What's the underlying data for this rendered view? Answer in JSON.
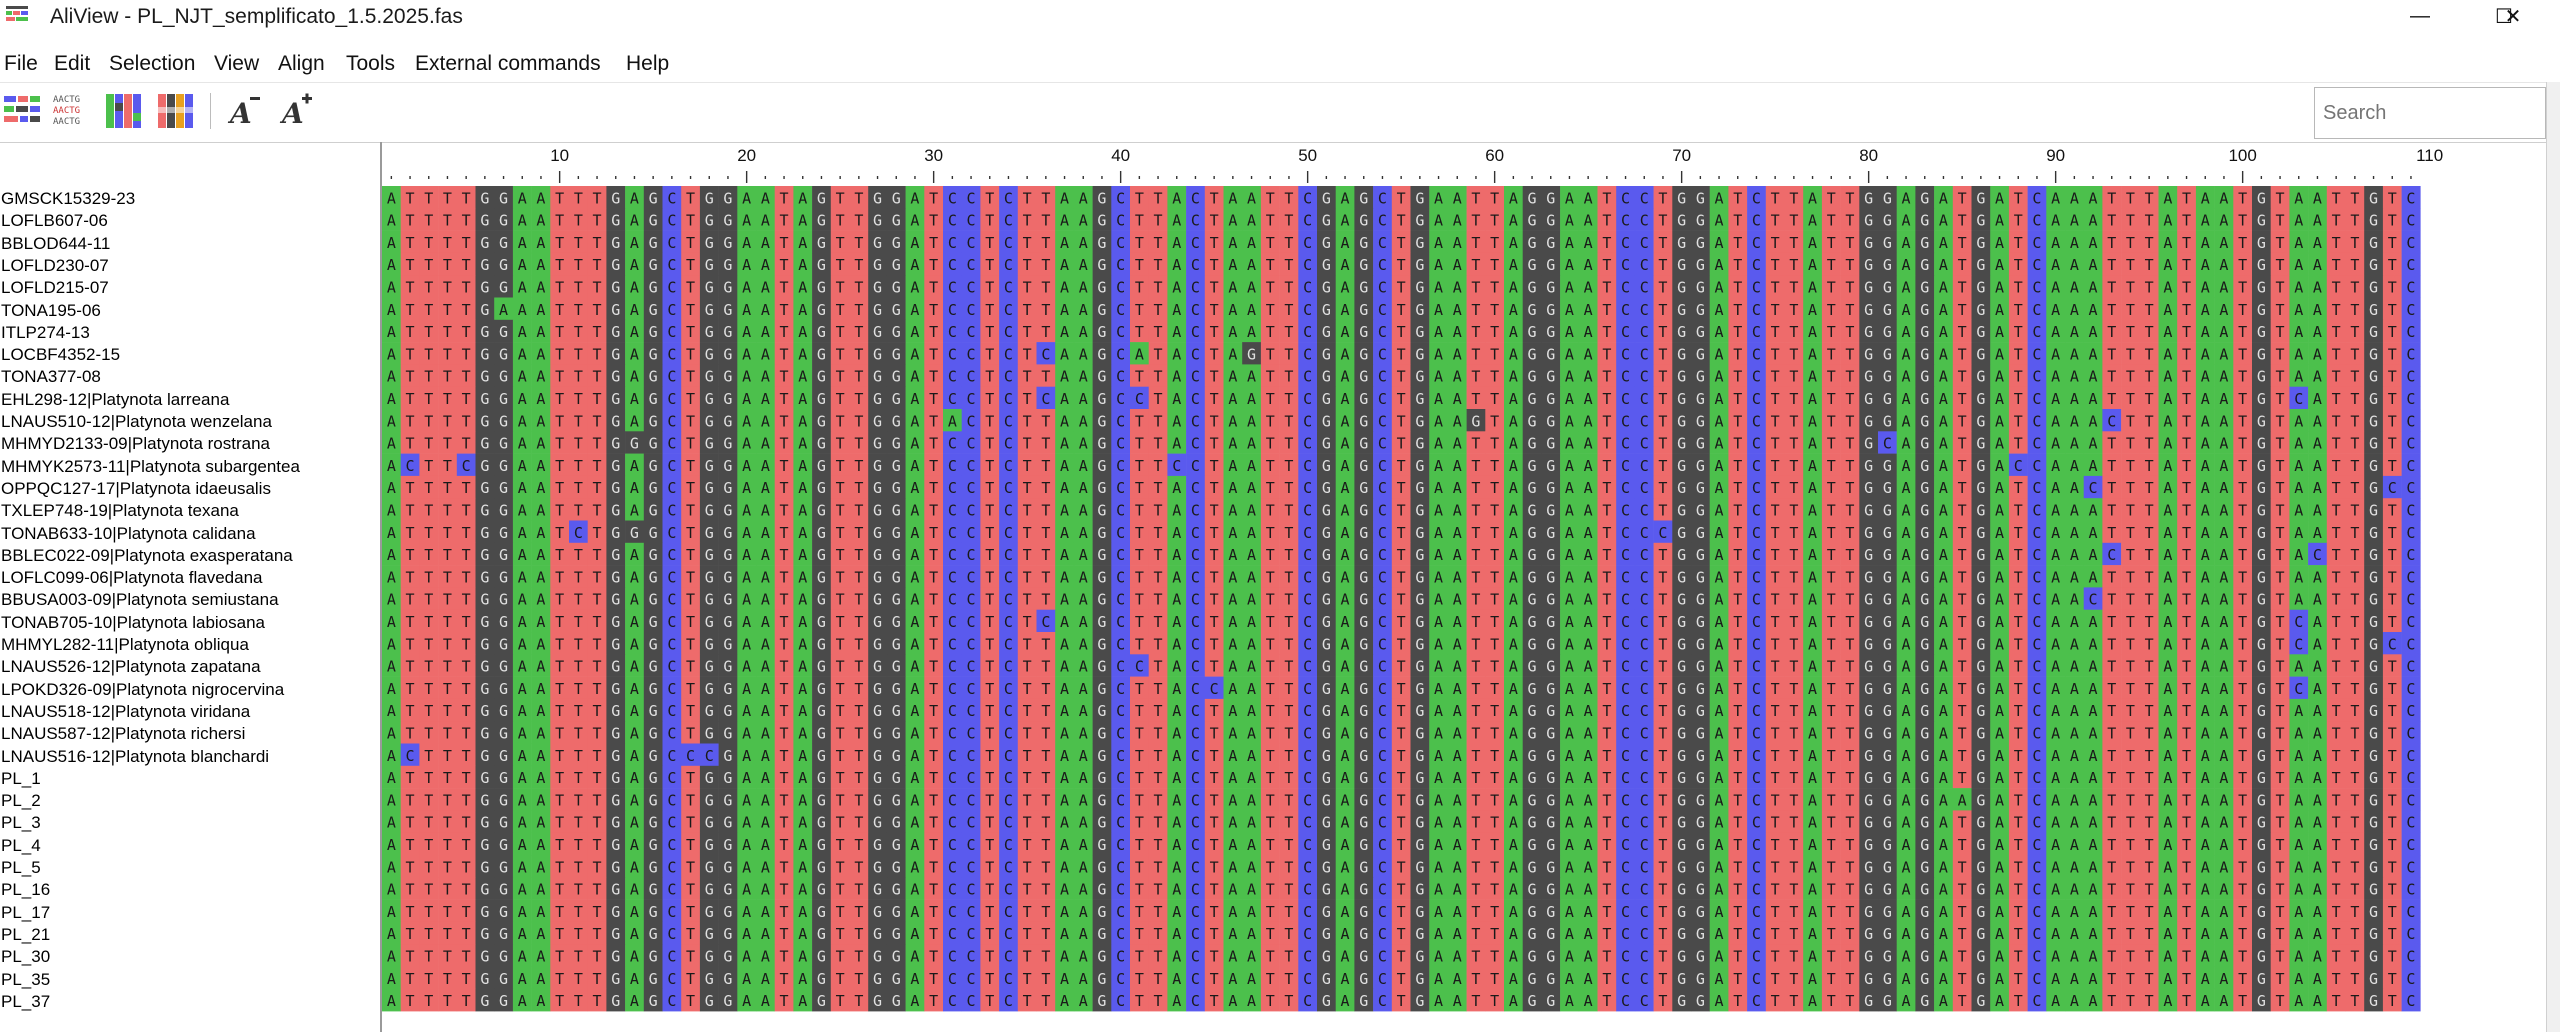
{
  "window": {
    "title": "AliView - PL_NJT_semplificato_1.5.2025.fas",
    "minimize_glyph": "—",
    "maximize_glyph": "☐",
    "close_glyph": "✕"
  },
  "menu": {
    "items": [
      "File",
      "Edit",
      "Selection",
      "View",
      "Align",
      "Tools",
      "External commands",
      "Help"
    ]
  },
  "toolbar": {
    "icons": [
      "color-scheme-icon",
      "font-case-icon",
      "colored-blocks-icon",
      "highlight-consensus-icon",
      "font-decrease-icon",
      "font-increase-icon"
    ],
    "search_placeholder": "Search"
  },
  "ruler": {
    "labels": [
      "10",
      "20",
      "30",
      "40",
      "50",
      "60",
      "70",
      "80",
      "90",
      "100",
      "110"
    ]
  },
  "colors": {
    "A": "#4cc04c",
    "T": "#ee6b6b",
    "G": "#4a4a4a",
    "C": "#5a5aee"
  },
  "sequences": {
    "names": [
      "GMSCK15329-23",
      "LOFLB607-06",
      "BBLOD644-11",
      "LOFLD230-07",
      "LOFLD215-07",
      "TONA195-06",
      "ITLP274-13",
      "LOCBF4352-15",
      "TONA377-08",
      "EHL298-12|Platynota larreana",
      "LNAUS510-12|Platynota wenzelana",
      "MHMYD2133-09|Platynota rostrana",
      "MHMYK2573-11|Platynota subargentea",
      "OPPQC127-17|Platynota idaeusalis",
      "TXLEP748-19|Platynota texana",
      "TONAB633-10|Platynota calidana",
      "BBLEC022-09|Platynota exasperatana",
      "LOFLC099-06|Platynota flavedana",
      "BBUSA003-09|Platynota semiustana",
      "TONAB705-10|Platynota labiosana",
      "MHMYL282-11|Platynota obliqua",
      "LNAUS526-12|Platynota zapatana",
      "LPOKD326-09|Platynota nigrocervina",
      "LNAUS518-12|Platynota viridana",
      "LNAUS587-12|Platynota richersi",
      "LNAUS516-12|Platynota blanchardi",
      "PL_1",
      "PL_2",
      "PL_3",
      "PL_4",
      "PL_5",
      "PL_16",
      "PL_17",
      "PL_21",
      "PL_30",
      "PL_35",
      "PL_37"
    ],
    "consensus": "ATTTTGGAATTTGAGCTGGAATAGTTGGATCCTCTTAAGCTTACTAATTCGAGCTGAATTAGGAATCCTGGATCTTATTGGAGATGATCAAATTTATAATGTAATTGTC",
    "variants": [
      [],
      [],
      [],
      [],
      [],
      [
        {
          "p": 6,
          "b": "G"
        },
        {
          "p": 7,
          "b": "A"
        }
      ],
      [],
      [
        {
          "p": 36,
          "b": "C"
        },
        {
          "p": 41,
          "b": "A"
        },
        {
          "p": 47,
          "b": "G"
        }
      ],
      [],
      [
        {
          "p": 36,
          "b": "C"
        },
        {
          "p": 41,
          "b": "C"
        },
        {
          "p": 44,
          "b": "C"
        },
        {
          "p": 103,
          "b": "C"
        }
      ],
      [
        {
          "p": 31,
          "b": "A"
        },
        {
          "p": 59,
          "b": "G"
        },
        {
          "p": 74,
          "b": "C"
        },
        {
          "p": 93,
          "b": "C"
        }
      ],
      [
        {
          "p": 14,
          "b": "G"
        },
        {
          "p": 81,
          "b": "C"
        }
      ],
      [
        {
          "p": 2,
          "b": "C"
        },
        {
          "p": 5,
          "b": "C"
        },
        {
          "p": 43,
          "b": "C"
        },
        {
          "p": 50,
          "b": "C"
        },
        {
          "p": 52,
          "b": "A"
        },
        {
          "p": 68,
          "b": "C"
        },
        {
          "p": 88,
          "b": "C"
        }
      ],
      [
        {
          "p": 92,
          "b": "C"
        },
        {
          "p": 108,
          "b": "C"
        }
      ],
      [],
      [
        {
          "p": 11,
          "b": "C"
        },
        {
          "p": 14,
          "b": "G"
        },
        {
          "p": 69,
          "b": "C"
        }
      ],
      [
        {
          "p": 50,
          "b": "C"
        },
        {
          "p": 93,
          "b": "C"
        },
        {
          "p": 104,
          "b": "C"
        }
      ],
      [],
      [
        {
          "p": 92,
          "b": "C"
        }
      ],
      [
        {
          "p": 36,
          "b": "C"
        },
        {
          "p": 103,
          "b": "C"
        }
      ],
      [
        {
          "p": 103,
          "b": "C"
        },
        {
          "p": 108,
          "b": "C"
        }
      ],
      [
        {
          "p": 41,
          "b": "C"
        }
      ],
      [
        {
          "p": 45,
          "b": "C"
        },
        {
          "p": 103,
          "b": "C"
        }
      ],
      [
        {
          "p": 70,
          "b": "G"
        },
        {
          "p": 71,
          "b": "G"
        }
      ],
      [
        {
          "p": 54,
          "b": "C"
        }
      ],
      [
        {
          "p": 2,
          "b": "C"
        },
        {
          "p": 17,
          "b": "C"
        },
        {
          "p": 18,
          "b": "C"
        }
      ],
      [],
      [
        {
          "p": 85,
          "b": "A"
        },
        {
          "p": 86,
          "b": "G"
        }
      ],
      [],
      [],
      [],
      [],
      [],
      [],
      [],
      [],
      []
    ]
  }
}
